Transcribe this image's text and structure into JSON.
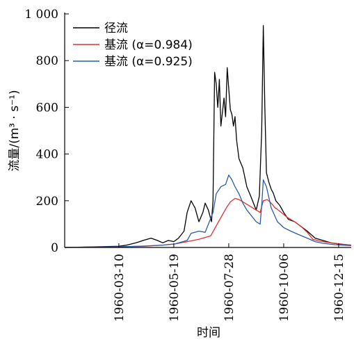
{
  "chart_data": {
    "type": "line",
    "title": "",
    "xlabel": "时间",
    "ylabel": "流量/(m³ · s⁻¹)",
    "xlim": [
      "1960-01-01",
      "1960-12-31"
    ],
    "ylim": [
      0,
      1000
    ],
    "y_ticks": [
      {
        "value": 0,
        "label": "0"
      },
      {
        "value": 200,
        "label": "200"
      },
      {
        "value": 400,
        "label": "400"
      },
      {
        "value": 600,
        "label": "600"
      },
      {
        "value": 800,
        "label": "800"
      },
      {
        "value": 1000,
        "label": "1 000"
      }
    ],
    "x_ticks": [
      {
        "value": "1960-03-10",
        "label": "1960-03-10"
      },
      {
        "value": "1960-05-19",
        "label": "1960-05-19"
      },
      {
        "value": "1960-07-28",
        "label": "1960-07-28"
      },
      {
        "value": "1960-10-06",
        "label": "1960-10-06"
      },
      {
        "value": "1960-12-15",
        "label": "1960-12-15"
      }
    ],
    "grid": false,
    "legend_position": "top-left",
    "series": [
      {
        "name": "径流",
        "color": "#000000",
        "x": [
          "1960-01-01",
          "1960-03-10",
          "1960-03-20",
          "1960-04-01",
          "1960-04-10",
          "1960-04-20",
          "1960-04-28",
          "1960-05-05",
          "1960-05-12",
          "1960-05-19",
          "1960-05-25",
          "1960-06-01",
          "1960-06-05",
          "1960-06-10",
          "1960-06-15",
          "1960-06-20",
          "1960-06-25",
          "1960-06-28",
          "1960-07-02",
          "1960-07-06",
          "1960-07-08",
          "1960-07-10",
          "1960-07-12",
          "1960-07-14",
          "1960-07-15",
          "1960-07-16",
          "1960-07-18",
          "1960-07-20",
          "1960-07-22",
          "1960-07-24",
          "1960-07-26",
          "1960-07-28",
          "1960-07-30",
          "1960-08-01",
          "1960-08-03",
          "1960-08-05",
          "1960-08-07",
          "1960-08-10",
          "1960-08-15",
          "1960-08-20",
          "1960-08-25",
          "1960-09-01",
          "1960-09-05",
          "1960-09-08",
          "1960-09-10",
          "1960-09-12",
          "1960-09-14",
          "1960-09-17",
          "1960-09-20",
          "1960-09-23",
          "1960-09-26",
          "1960-10-01",
          "1960-10-06",
          "1960-10-12",
          "1960-10-20",
          "1960-10-28",
          "1960-11-05",
          "1960-11-15",
          "1960-11-25",
          "1960-12-05",
          "1960-12-15",
          "1960-12-25",
          "1960-12-31"
        ],
        "values": [
          0,
          5,
          10,
          20,
          30,
          40,
          30,
          20,
          30,
          25,
          40,
          70,
          150,
          200,
          170,
          110,
          150,
          190,
          160,
          110,
          200,
          750,
          700,
          600,
          650,
          720,
          520,
          580,
          640,
          560,
          770,
          680,
          590,
          570,
          520,
          560,
          460,
          380,
          340,
          260,
          220,
          160,
          220,
          500,
          950,
          600,
          320,
          280,
          250,
          230,
          200,
          180,
          150,
          120,
          110,
          90,
          70,
          40,
          30,
          20,
          15,
          12,
          10
        ]
      },
      {
        "name": "基流 (α=0.984)",
        "color": "#e03030",
        "x": [
          "1960-01-01",
          "1960-03-10",
          "1960-04-10",
          "1960-05-05",
          "1960-05-20",
          "1960-06-05",
          "1960-06-20",
          "1960-07-05",
          "1960-07-10",
          "1960-07-15",
          "1960-07-20",
          "1960-07-25",
          "1960-07-30",
          "1960-08-05",
          "1960-08-10",
          "1960-08-20",
          "1960-09-01",
          "1960-09-06",
          "1960-09-10",
          "1960-09-15",
          "1960-09-20",
          "1960-09-25",
          "1960-10-01",
          "1960-10-10",
          "1960-10-20",
          "1960-10-28",
          "1960-11-05",
          "1960-11-12",
          "1960-11-20",
          "1960-12-05",
          "1960-12-20",
          "1960-12-31"
        ],
        "values": [
          0,
          3,
          5,
          10,
          15,
          25,
          35,
          50,
          80,
          110,
          140,
          170,
          195,
          210,
          205,
          185,
          160,
          150,
          200,
          205,
          190,
          170,
          155,
          130,
          110,
          90,
          65,
          35,
          28,
          20,
          14,
          10
        ]
      },
      {
        "name": "基流 (α=0.925)",
        "color": "#2a5ba8",
        "x": [
          "1960-01-01",
          "1960-03-10",
          "1960-04-10",
          "1960-05-05",
          "1960-05-20",
          "1960-06-05",
          "1960-06-10",
          "1960-06-20",
          "1960-06-28",
          "1960-07-08",
          "1960-07-12",
          "1960-07-18",
          "1960-07-24",
          "1960-07-28",
          "1960-08-01",
          "1960-08-05",
          "1960-08-10",
          "1960-08-15",
          "1960-08-20",
          "1960-09-01",
          "1960-09-06",
          "1960-09-08",
          "1960-09-10",
          "1960-09-14",
          "1960-09-20",
          "1960-09-28",
          "1960-10-06",
          "1960-10-15",
          "1960-10-25",
          "1960-11-05",
          "1960-11-15",
          "1960-11-25",
          "1960-12-10",
          "1960-12-31"
        ],
        "values": [
          0,
          3,
          6,
          10,
          15,
          30,
          60,
          70,
          65,
          150,
          230,
          260,
          270,
          310,
          290,
          260,
          230,
          190,
          160,
          110,
          100,
          180,
          290,
          260,
          170,
          110,
          85,
          70,
          55,
          40,
          25,
          18,
          12,
          8
        ]
      }
    ]
  }
}
